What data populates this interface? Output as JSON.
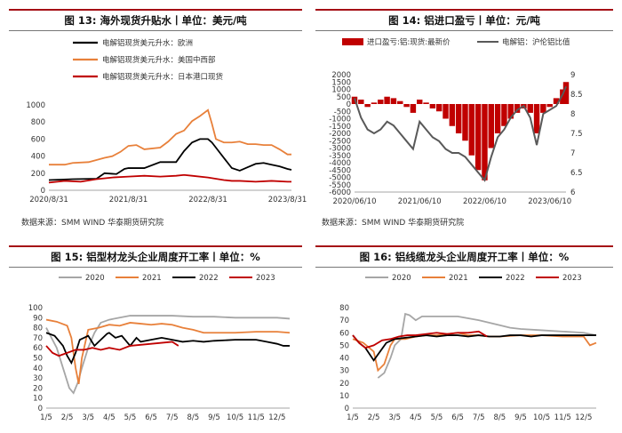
{
  "charts": [
    {
      "title": "图 13: 海外现货升贴水丨单位：美元/吨",
      "source": "数据来源：SMM WIND 华泰期货研究院"
    },
    {
      "title": "图 14: 铝进口盈亏丨单位：元/吨",
      "source": "数据来源：SMM WIND 华泰期货研究院"
    },
    {
      "title": "图 15: 铝型材龙头企业周度开工率丨单位：%",
      "source": ""
    },
    {
      "title": "图 16: 铝线缆龙头企业周度开工率丨单位：%",
      "source": ""
    }
  ],
  "chart_data": [
    {
      "type": "line",
      "x_ticks": [
        "2020/8/31",
        "2021/8/31",
        "2022/8/31",
        "2023/8/31"
      ],
      "ylim": [
        0,
        1000
      ],
      "y_ticks": [
        0,
        200,
        400,
        600,
        800,
        1000
      ],
      "series": [
        {
          "name": "电解铝现货美元升水：欧洲",
          "color": "#000000",
          "x": [
            0,
            0.15,
            0.3,
            0.6,
            0.7,
            0.85,
            0.9,
            0.95,
            1.0,
            1.2,
            1.4,
            1.5,
            1.6,
            1.7,
            1.8,
            1.9,
            2.0,
            2.05,
            2.1,
            2.2,
            2.3,
            2.4,
            2.5,
            2.6,
            2.7,
            2.8,
            2.9,
            3.0,
            3.05
          ],
          "y": [
            120,
            125,
            130,
            135,
            200,
            190,
            220,
            250,
            260,
            260,
            330,
            330,
            330,
            460,
            560,
            600,
            600,
            560,
            500,
            380,
            260,
            230,
            270,
            310,
            320,
            300,
            280,
            250,
            240
          ]
        },
        {
          "name": "电解铝现货美元升水：美国中西部",
          "color": "#e8803a",
          "x": [
            0,
            0.2,
            0.3,
            0.5,
            0.7,
            0.8,
            0.9,
            1.0,
            1.1,
            1.2,
            1.4,
            1.5,
            1.6,
            1.7,
            1.8,
            1.9,
            2.0,
            2.05,
            2.1,
            2.2,
            2.3,
            2.4,
            2.5,
            2.6,
            2.7,
            2.8,
            2.9,
            3.0,
            3.05
          ],
          "y": [
            300,
            300,
            320,
            330,
            380,
            400,
            450,
            520,
            530,
            480,
            500,
            570,
            660,
            700,
            810,
            870,
            940,
            780,
            600,
            560,
            560,
            570,
            540,
            540,
            530,
            530,
            480,
            420,
            420
          ]
        },
        {
          "name": "电解铝现货美元升水：日本港口现货",
          "color": "#c00000",
          "x": [
            0,
            0.2,
            0.4,
            0.6,
            0.8,
            1.0,
            1.2,
            1.4,
            1.6,
            1.7,
            1.8,
            2.0,
            2.2,
            2.3,
            2.4,
            2.6,
            2.8,
            3.0,
            3.05
          ],
          "y": [
            90,
            110,
            100,
            130,
            150,
            160,
            170,
            160,
            170,
            180,
            170,
            150,
            120,
            110,
            110,
            100,
            110,
            100,
            100
          ]
        }
      ]
    },
    {
      "type": "bar+line",
      "x_ticks": [
        "2020/06/10",
        "2021/06/10",
        "2022/06/10",
        "2023/06/10"
      ],
      "ylim": [
        -6000,
        2000
      ],
      "y_ticks": [
        2000,
        1500,
        1000,
        500,
        0,
        -500,
        -1000,
        -1500,
        -2000,
        -2500,
        -3000,
        -3500,
        -4000,
        -4500,
        -5000,
        -5500,
        -6000
      ],
      "y2lim": [
        6,
        9
      ],
      "y2_ticks": [
        9,
        8.5,
        8,
        7.5,
        7,
        6.5,
        6
      ],
      "series": [
        {
          "name": "进口盈亏:铝:现货:最新价",
          "color": "#c00000",
          "kind": "bar",
          "x": [
            0,
            0.1,
            0.2,
            0.3,
            0.4,
            0.5,
            0.6,
            0.7,
            0.8,
            0.9,
            1.0,
            1.1,
            1.2,
            1.3,
            1.4,
            1.5,
            1.6,
            1.7,
            1.8,
            1.9,
            2.0,
            2.1,
            2.2,
            2.3,
            2.4,
            2.5,
            2.6,
            2.7,
            2.8,
            2.9,
            3.0,
            3.1,
            3.2,
            3.25
          ],
          "y": [
            500,
            300,
            -200,
            100,
            300,
            500,
            400,
            200,
            -200,
            -600,
            300,
            100,
            -300,
            -500,
            -1000,
            -1500,
            -2000,
            -2500,
            -3500,
            -4500,
            -5200,
            -3000,
            -2000,
            -1500,
            -1000,
            -600,
            -300,
            -600,
            -2000,
            -600,
            -200,
            400,
            1000,
            1500
          ]
        },
        {
          "name": "电解铝：沪伦铝比值",
          "color": "#595959",
          "kind": "line",
          "axis": "right",
          "x": [
            0,
            0.1,
            0.2,
            0.3,
            0.4,
            0.5,
            0.6,
            0.7,
            0.8,
            0.9,
            1.0,
            1.1,
            1.2,
            1.3,
            1.4,
            1.5,
            1.6,
            1.7,
            1.8,
            1.9,
            2.0,
            2.1,
            2.2,
            2.3,
            2.4,
            2.5,
            2.6,
            2.7,
            2.8,
            2.9,
            3.0,
            3.1,
            3.2,
            3.25
          ],
          "y": [
            8.4,
            7.9,
            7.6,
            7.5,
            7.6,
            7.8,
            7.7,
            7.5,
            7.3,
            7.1,
            7.8,
            7.6,
            7.4,
            7.3,
            7.1,
            7.0,
            7.0,
            6.9,
            6.7,
            6.5,
            6.3,
            6.9,
            7.4,
            7.6,
            7.9,
            8.1,
            8.2,
            7.9,
            7.2,
            8.0,
            8.1,
            8.2,
            8.5,
            8.7
          ]
        }
      ]
    },
    {
      "type": "line",
      "x_ticks": [
        "1/5",
        "2/5",
        "3/5",
        "4/5",
        "5/5",
        "6/5",
        "7/5",
        "8/5",
        "9/5",
        "10/5",
        "11/5",
        "12/5"
      ],
      "ylim": [
        0,
        100
      ],
      "y_ticks": [
        0,
        10,
        20,
        30,
        40,
        50,
        60,
        70,
        80,
        90,
        100
      ],
      "series": [
        {
          "name": "2020",
          "color": "#a6a6a6",
          "x": [
            1.0,
            1.2,
            1.5,
            1.8,
            2.1,
            2.3,
            2.5,
            2.7,
            3.0,
            3.3,
            3.6,
            4.0,
            4.5,
            5.0,
            6.0,
            7.0,
            8.0,
            9.0,
            10.0,
            11.0,
            12.0,
            12.6
          ],
          "y": [
            80,
            72,
            60,
            40,
            20,
            15,
            25,
            40,
            60,
            75,
            85,
            88,
            90,
            92,
            92,
            92,
            91,
            91,
            90,
            90,
            90,
            89
          ]
        },
        {
          "name": "2021",
          "color": "#e8803a",
          "x": [
            1.0,
            1.5,
            2.0,
            2.2,
            2.4,
            2.55,
            2.7,
            3.0,
            3.5,
            4.0,
            4.5,
            5.0,
            5.5,
            6.0,
            6.5,
            7.0,
            7.5,
            8.0,
            8.5,
            9.0,
            10.0,
            11.0,
            12.0,
            12.6
          ],
          "y": [
            88,
            86,
            82,
            70,
            40,
            24,
            50,
            78,
            80,
            83,
            82,
            85,
            84,
            83,
            84,
            83,
            80,
            78,
            75,
            75,
            75,
            76,
            76,
            75
          ]
        },
        {
          "name": "2022",
          "color": "#000000",
          "x": [
            1.0,
            1.4,
            1.8,
            2.0,
            2.2,
            2.4,
            2.6,
            2.8,
            3.0,
            3.3,
            3.6,
            3.9,
            4.0,
            4.3,
            4.6,
            5.0,
            5.3,
            5.5,
            6.0,
            6.5,
            7.0,
            7.5,
            8.0,
            8.5,
            9.0,
            10.0,
            10.5,
            11.0,
            11.5,
            12.0,
            12.3,
            12.6
          ],
          "y": [
            75,
            72,
            62,
            52,
            45,
            55,
            68,
            70,
            72,
            62,
            68,
            74,
            75,
            70,
            72,
            62,
            70,
            66,
            68,
            70,
            68,
            66,
            67,
            66,
            67,
            68,
            68,
            68,
            66,
            64,
            62,
            62
          ]
        },
        {
          "name": "2023",
          "color": "#c00000",
          "x": [
            1.0,
            1.3,
            1.6,
            2.0,
            2.4,
            2.8,
            3.2,
            3.6,
            4.0,
            4.5,
            5.0,
            5.5,
            6.0,
            6.5,
            7.0,
            7.3
          ],
          "y": [
            62,
            55,
            52,
            55,
            58,
            58,
            60,
            58,
            60,
            58,
            62,
            63,
            64,
            65,
            66,
            62
          ]
        }
      ]
    },
    {
      "type": "line",
      "x_ticks": [
        "1/5",
        "2/5",
        "3/5",
        "4/5",
        "5/5",
        "6/5",
        "7/5",
        "8/5",
        "9/5",
        "10/5",
        "11/5",
        "12/5"
      ],
      "ylim": [
        0,
        80
      ],
      "y_ticks": [
        0,
        10,
        20,
        30,
        40,
        50,
        60,
        70,
        80
      ],
      "series": [
        {
          "name": "2020",
          "color": "#a6a6a6",
          "x": [
            2.2,
            2.5,
            2.8,
            3.0,
            3.3,
            3.5,
            3.7,
            4.0,
            4.3,
            4.6,
            5.0,
            5.5,
            6.0,
            7.0,
            8.0,
            8.5,
            9.0,
            10.0,
            11.0,
            12.0,
            12.6
          ],
          "y": [
            24,
            28,
            40,
            50,
            55,
            75,
            74,
            70,
            73,
            73,
            73,
            73,
            73,
            70,
            66,
            64,
            63,
            62,
            61,
            60,
            58
          ]
        },
        {
          "name": "2021",
          "color": "#e8803a",
          "x": [
            1.0,
            1.5,
            2.0,
            2.2,
            2.5,
            2.8,
            3.0,
            3.5,
            4.0,
            4.5,
            5.0,
            5.5,
            6.0,
            6.5,
            7.0,
            7.5,
            8.0,
            9.0,
            10.0,
            11.0,
            12.0,
            12.3,
            12.6
          ],
          "y": [
            55,
            52,
            45,
            30,
            35,
            50,
            55,
            55,
            57,
            58,
            58,
            59,
            60,
            58,
            58,
            57,
            57,
            58,
            58,
            57,
            57,
            50,
            52
          ]
        },
        {
          "name": "2022",
          "color": "#000000",
          "x": [
            1.0,
            1.3,
            1.6,
            2.0,
            2.3,
            2.6,
            3.0,
            3.5,
            4.0,
            4.5,
            5.0,
            5.5,
            6.0,
            6.5,
            7.0,
            7.5,
            8.0,
            8.5,
            9.0,
            9.5,
            10.0,
            10.5,
            11.0,
            11.5,
            12.0,
            12.6
          ],
          "y": [
            58,
            52,
            48,
            38,
            45,
            52,
            55,
            56,
            57,
            58,
            57,
            58,
            58,
            57,
            58,
            57,
            57,
            58,
            58,
            57,
            58,
            58,
            58,
            58,
            58,
            58
          ]
        },
        {
          "name": "2023",
          "color": "#c00000",
          "x": [
            1.0,
            1.3,
            1.6,
            2.0,
            2.4,
            2.8,
            3.2,
            3.6,
            4.0,
            4.5,
            5.0,
            5.5,
            6.0,
            6.5,
            7.0,
            7.4
          ],
          "y": [
            58,
            52,
            48,
            50,
            54,
            55,
            57,
            58,
            58,
            59,
            60,
            59,
            60,
            60,
            61,
            57
          ]
        }
      ]
    }
  ]
}
